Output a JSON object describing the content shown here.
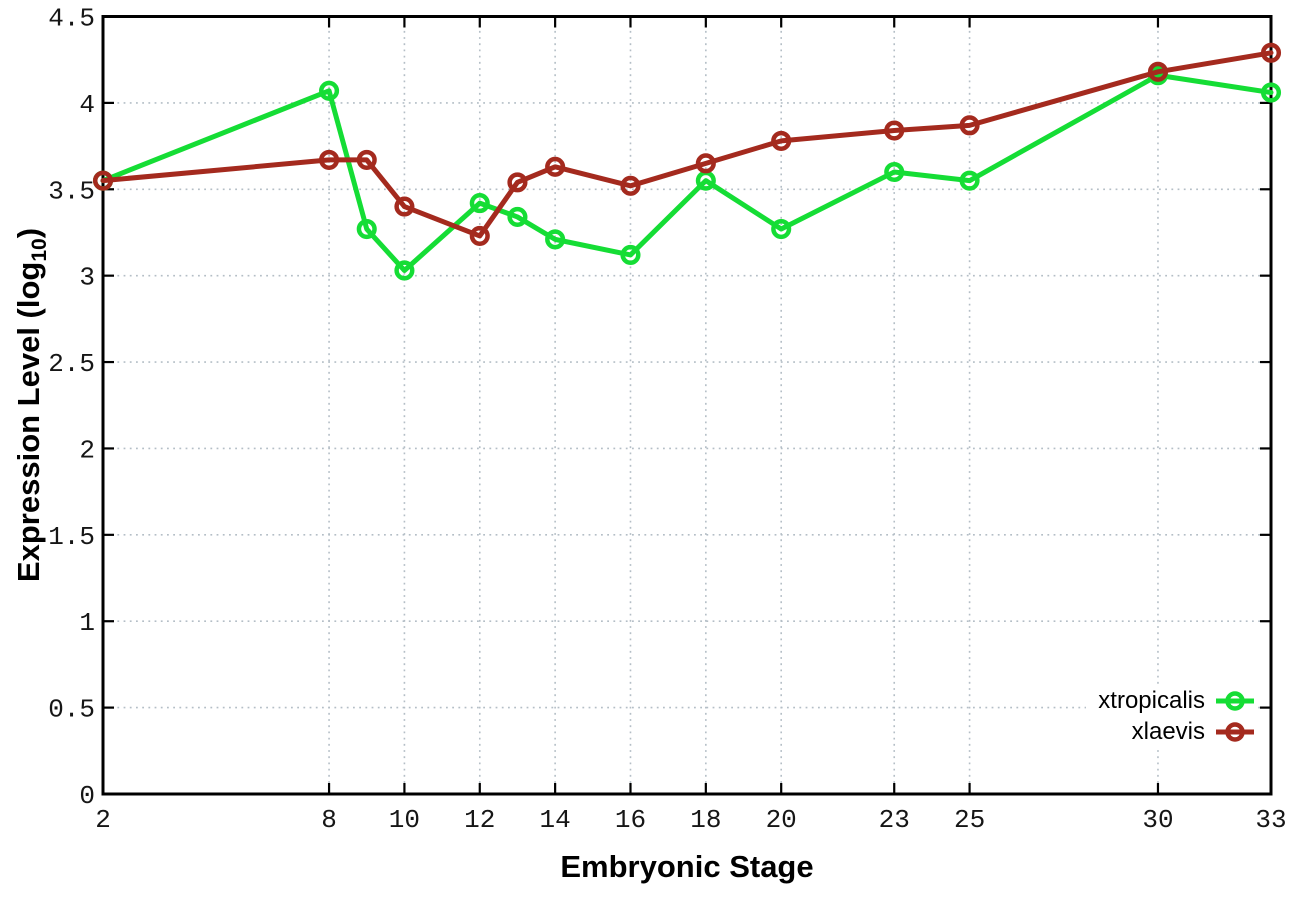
{
  "figure": {
    "background": "#ffffff",
    "border_color": "#000000",
    "grid_color": "#b4bec6",
    "text_color": "#000000"
  },
  "chart_data": {
    "type": "line",
    "title": "",
    "xlabel": "Embryonic Stage",
    "ylabel": "Expression Level (log10)",
    "ylabel_parts": {
      "main": "Expression Level (log",
      "sub": "10",
      "end": ")"
    },
    "xlim": [
      2,
      33
    ],
    "ylim": [
      0,
      4.5
    ],
    "xticks": [
      2,
      8,
      10,
      12,
      14,
      16,
      18,
      20,
      23,
      25,
      30,
      33
    ],
    "ytick_labels": [
      "0",
      "0.5",
      "1",
      "1.5",
      "2",
      "2.5",
      "3",
      "3.5",
      "4",
      "4.5"
    ],
    "grid": true,
    "legend_position": "bottom-right",
    "x": [
      2,
      8,
      9,
      10,
      12,
      13,
      14,
      16,
      18,
      20,
      23,
      25,
      30,
      33
    ],
    "series": [
      {
        "name": "xtropicalis",
        "color": "#15dd35",
        "values": [
          3.55,
          4.07,
          3.27,
          3.03,
          3.42,
          3.34,
          3.21,
          3.12,
          3.55,
          3.27,
          3.6,
          3.55,
          4.16,
          4.06
        ]
      },
      {
        "name": "xlaevis",
        "color": "#a42a1e",
        "values": [
          3.55,
          3.67,
          3.67,
          3.4,
          3.23,
          3.54,
          3.63,
          3.52,
          3.65,
          3.78,
          3.84,
          3.87,
          4.18,
          4.29
        ]
      }
    ]
  }
}
